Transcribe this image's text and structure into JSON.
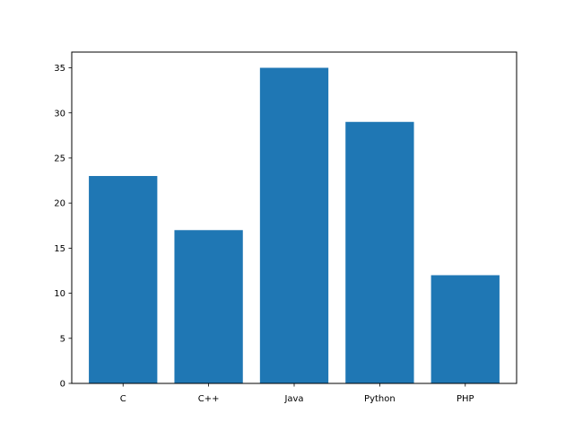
{
  "chart_data": {
    "type": "bar",
    "title": "",
    "xlabel": "",
    "ylabel": "",
    "categories": [
      "C",
      "C++",
      "Java",
      "Python",
      "PHP"
    ],
    "values": [
      23,
      17,
      35,
      29,
      12
    ],
    "ylim": [
      0,
      36.75
    ],
    "yticks": [
      0,
      5,
      10,
      15,
      20,
      25,
      30,
      35
    ],
    "grid": false,
    "legend": null,
    "bar_color": "#1f77b4"
  }
}
